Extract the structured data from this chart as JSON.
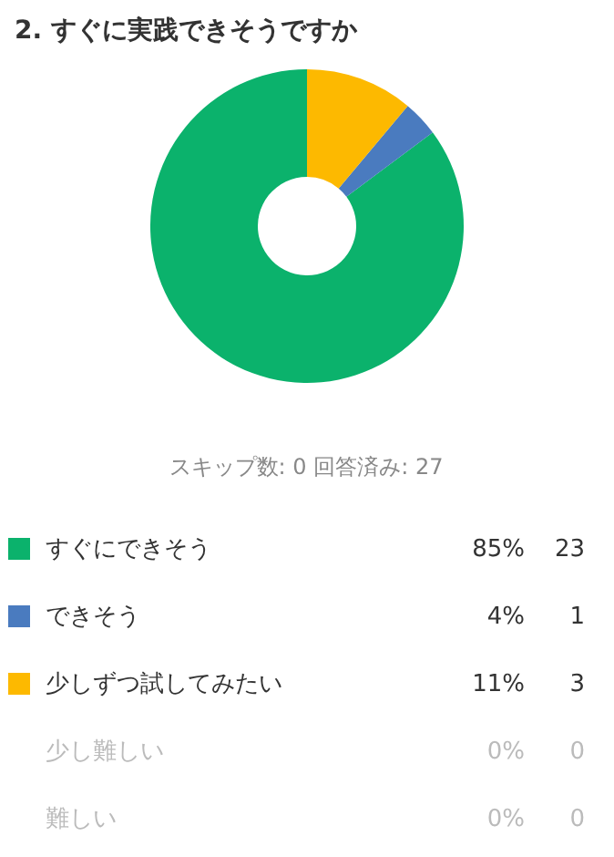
{
  "chart_data": {
    "type": "donut",
    "title": "2. すぐに実践できそうですか",
    "categories": [
      "すぐにできそう",
      "できそう",
      "少しずつ試してみたい",
      "少し難しい",
      "難しい"
    ],
    "values": [
      23,
      1,
      3,
      0,
      0
    ],
    "colors": [
      "#0bb26c",
      "#4a7bbf",
      "#fdb900",
      null,
      null
    ],
    "value_labels": [
      "23",
      "1",
      "3",
      "0",
      "0"
    ],
    "legend": "bottom",
    "annotations": [
      "スキップ数: 0   回答済み: 27",
      {
        "text": "85%",
        "x": "すぐにできそう"
      },
      {
        "text": "4%",
        "x": "できそう"
      },
      {
        "text": "11%",
        "x": "少しずつ試してみたい"
      },
      {
        "text": "0%",
        "x": "少し難しい"
      },
      {
        "text": "0%",
        "x": "難しい"
      }
    ]
  }
}
